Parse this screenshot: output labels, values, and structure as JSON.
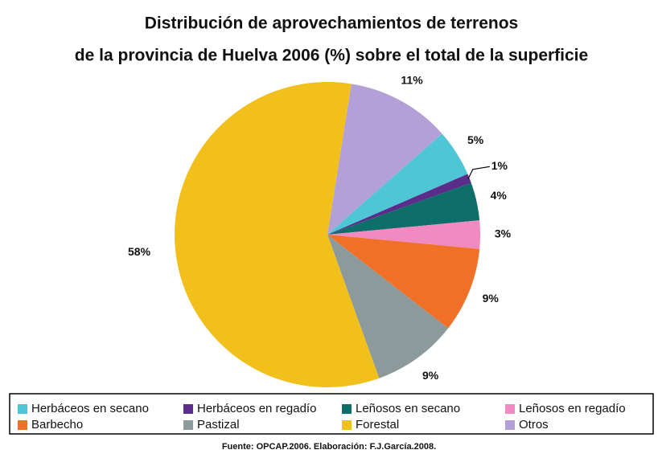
{
  "chart_data": {
    "type": "pie",
    "title": [
      "Distribución de aprovechamientos de terrenos",
      "de la provincia de Huelva 2006 (%) sobre el total de la superficie"
    ],
    "categories": [
      "Herbáceos en secano",
      "Herbáceos en regadío",
      "Leñosos en secano",
      "Leñosos en regadío",
      "Barbecho",
      "Pastizal",
      "Forestal",
      "Otros"
    ],
    "values": [
      5,
      1,
      4,
      3,
      9,
      9,
      58,
      11
    ],
    "value_labels": [
      "5%",
      "1%",
      "4%",
      "3%",
      "9%",
      "9%",
      "58%",
      "11%"
    ],
    "colors": [
      "#4fc6d6",
      "#5a2d8a",
      "#0d6e6a",
      "#f08ac0",
      "#f07027",
      "#8c9a9b",
      "#f2c01c",
      "#b3a0d6"
    ],
    "source": "Fuente: OPCAP.2006. Elaboración: F.J.García.2008."
  }
}
